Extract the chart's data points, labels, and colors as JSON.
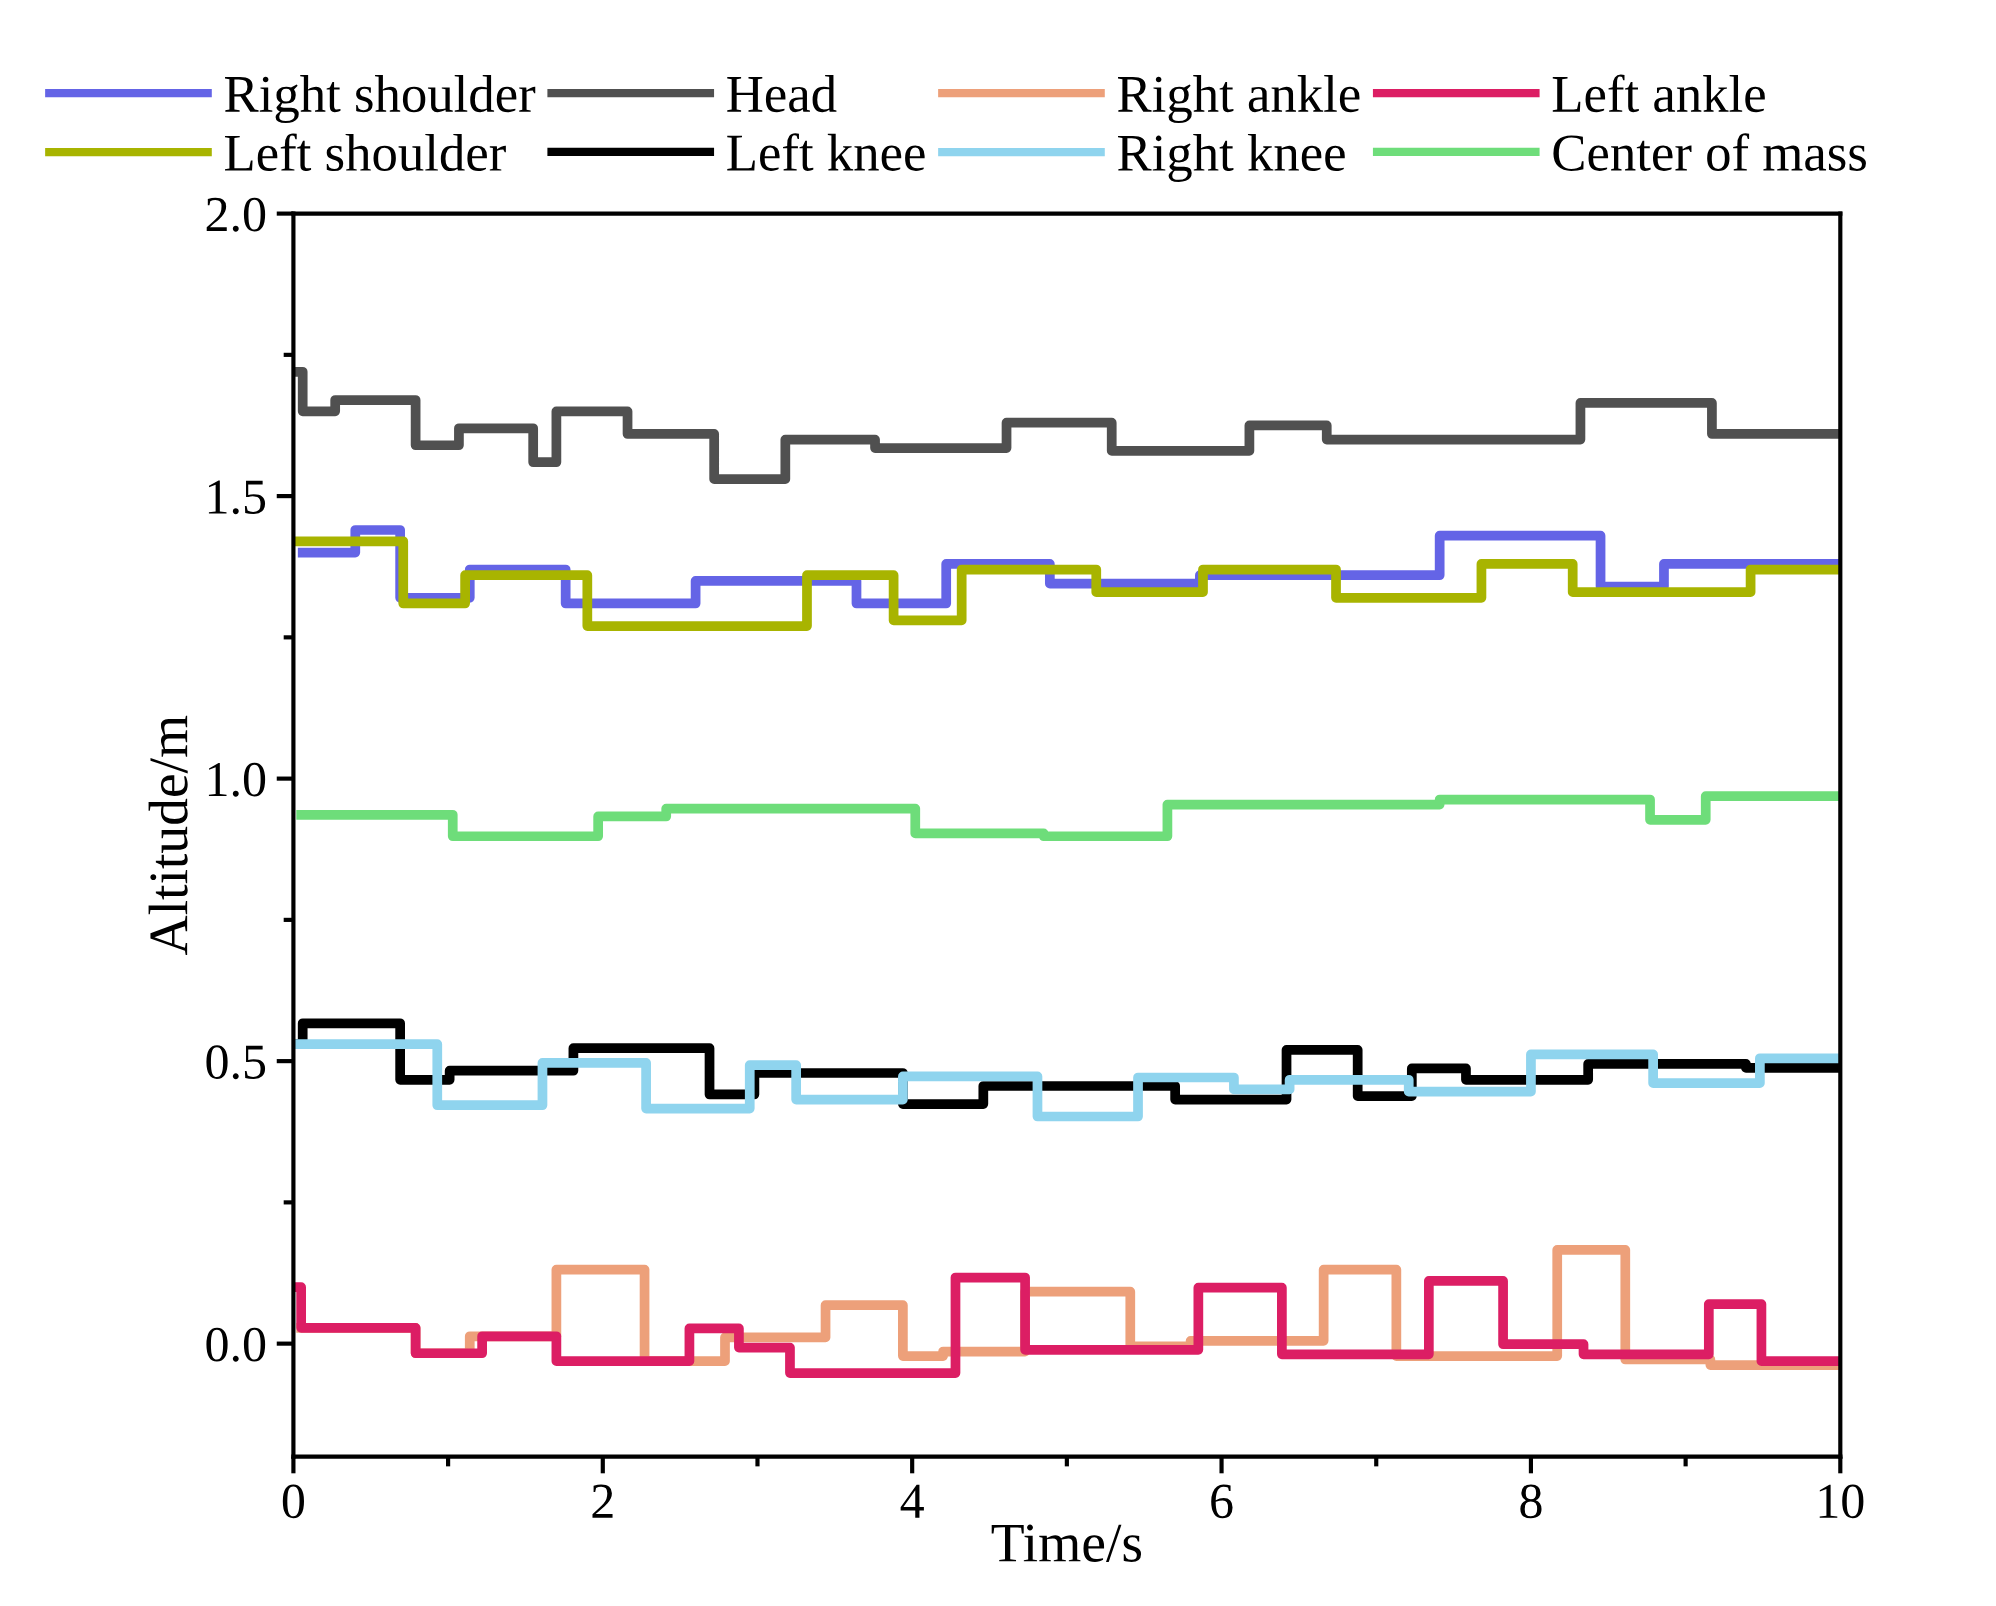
{
  "chart_data": {
    "type": "step",
    "xlabel": "Time/s",
    "ylabel": "Altitude/m",
    "xlim": [
      0,
      10
    ],
    "xticks": [
      0,
      2,
      4,
      6,
      8,
      10
    ],
    "ylim": [
      -0.2,
      2.0
    ],
    "yticks": [
      {
        "value": 0,
        "label": "0.0"
      },
      {
        "value": 0.5,
        "label": "0.5"
      },
      {
        "value": 1,
        "label": "1.0"
      },
      {
        "value": 1.5,
        "label": "1.5"
      },
      {
        "value": 2,
        "label": "2.0"
      }
    ],
    "grid": false,
    "legend": "top",
    "line_style": "solid",
    "marker": "none",
    "series": [
      {
        "name": "Right shoulder",
        "color": "#6464e6",
        "x": [
          0.06,
          0.4,
          0.69,
          1.14,
          1.76,
          2.6,
          3.64,
          4.22,
          4.89,
          5.86,
          7.41,
          8.45,
          8.86,
          10
        ],
        "values": [
          1.4,
          1.44,
          1.32,
          1.37,
          1.31,
          1.35,
          1.31,
          1.38,
          1.345,
          1.36,
          1.43,
          1.34,
          1.38,
          1.38
        ]
      },
      {
        "name": "Head",
        "color": "#505050",
        "x": [
          0.02,
          0.06,
          0.27,
          0.79,
          1.07,
          1.55,
          1.7,
          2.16,
          2.72,
          3.18,
          3.76,
          4.61,
          5.29,
          6.18,
          6.68,
          8.32,
          9.17,
          10
        ],
        "values": [
          1.72,
          1.65,
          1.67,
          1.59,
          1.62,
          1.56,
          1.65,
          1.61,
          1.53,
          1.6,
          1.585,
          1.63,
          1.58,
          1.625,
          1.6,
          1.665,
          1.61,
          1.61
        ]
      },
      {
        "name": "Right ankle",
        "color": "#eda07a",
        "x": [
          0.05,
          0.79,
          1.14,
          1.7,
          2.27,
          2.79,
          3.44,
          3.94,
          4.2,
          4.73,
          5.41,
          5.8,
          6.66,
          7.13,
          8.17,
          8.61,
          9.16,
          10
        ],
        "values": [
          0.028,
          -0.017,
          0.013,
          0.131,
          -0.031,
          0.011,
          0.068,
          -0.022,
          -0.014,
          0.092,
          -0.005,
          0.005,
          0.131,
          -0.022,
          0.166,
          -0.028,
          -0.038,
          -0.038
        ]
      },
      {
        "name": "Left ankle",
        "color": "#dc1e64",
        "x": [
          0.02,
          0.05,
          0.79,
          1.22,
          1.7,
          2.56,
          2.88,
          3.21,
          4.28,
          4.73,
          5.85,
          6.39,
          7.34,
          7.82,
          8.34,
          9.15,
          9.49,
          10
        ],
        "values": [
          0.1,
          0.028,
          -0.017,
          0.013,
          -0.031,
          0.027,
          -0.007,
          -0.052,
          0.117,
          -0.011,
          0.099,
          -0.019,
          0.111,
          -0.001,
          -0.019,
          0.07,
          -0.031,
          -0.031
        ]
      },
      {
        "name": "Left shoulder",
        "color": "#a8b400",
        "x": [
          0.0,
          0.71,
          1.11,
          1.9,
          3.32,
          3.88,
          4.32,
          5.19,
          5.88,
          6.74,
          7.68,
          8.27,
          9.42,
          10
        ],
        "values": [
          1.42,
          1.31,
          1.36,
          1.27,
          1.36,
          1.28,
          1.37,
          1.33,
          1.37,
          1.32,
          1.38,
          1.33,
          1.37,
          1.37
        ]
      },
      {
        "name": "Left knee",
        "color": "#000000",
        "x": [
          0.02,
          0.06,
          0.69,
          1.01,
          1.81,
          2.69,
          2.98,
          3.94,
          4.46,
          5.7,
          6.42,
          6.88,
          7.23,
          7.58,
          8.37,
          9.39,
          10
        ],
        "values": [
          0.53,
          0.567,
          0.467,
          0.483,
          0.523,
          0.441,
          0.479,
          0.424,
          0.456,
          0.432,
          0.52,
          0.438,
          0.487,
          0.467,
          0.495,
          0.488,
          0.488
        ]
      },
      {
        "name": "Right knee",
        "color": "#8fd4ee",
        "x": [
          0.0,
          0.93,
          1.61,
          2.28,
          2.95,
          3.25,
          3.94,
          4.81,
          5.46,
          6.08,
          6.44,
          7.21,
          8.0,
          8.79,
          9.48,
          10
        ],
        "values": [
          0.53,
          0.422,
          0.497,
          0.416,
          0.493,
          0.432,
          0.473,
          0.402,
          0.471,
          0.45,
          0.467,
          0.446,
          0.512,
          0.461,
          0.505,
          0.505
        ]
      },
      {
        "name": "Center of mass",
        "color": "#6edd7a",
        "x": [
          0.05,
          1.03,
          1.97,
          2.41,
          4.02,
          4.85,
          5.65,
          7.41,
          8.77,
          9.13,
          10
        ],
        "values": [
          0.936,
          0.898,
          0.933,
          0.947,
          0.903,
          0.898,
          0.954,
          0.963,
          0.927,
          0.969,
          0.969
        ]
      }
    ]
  }
}
